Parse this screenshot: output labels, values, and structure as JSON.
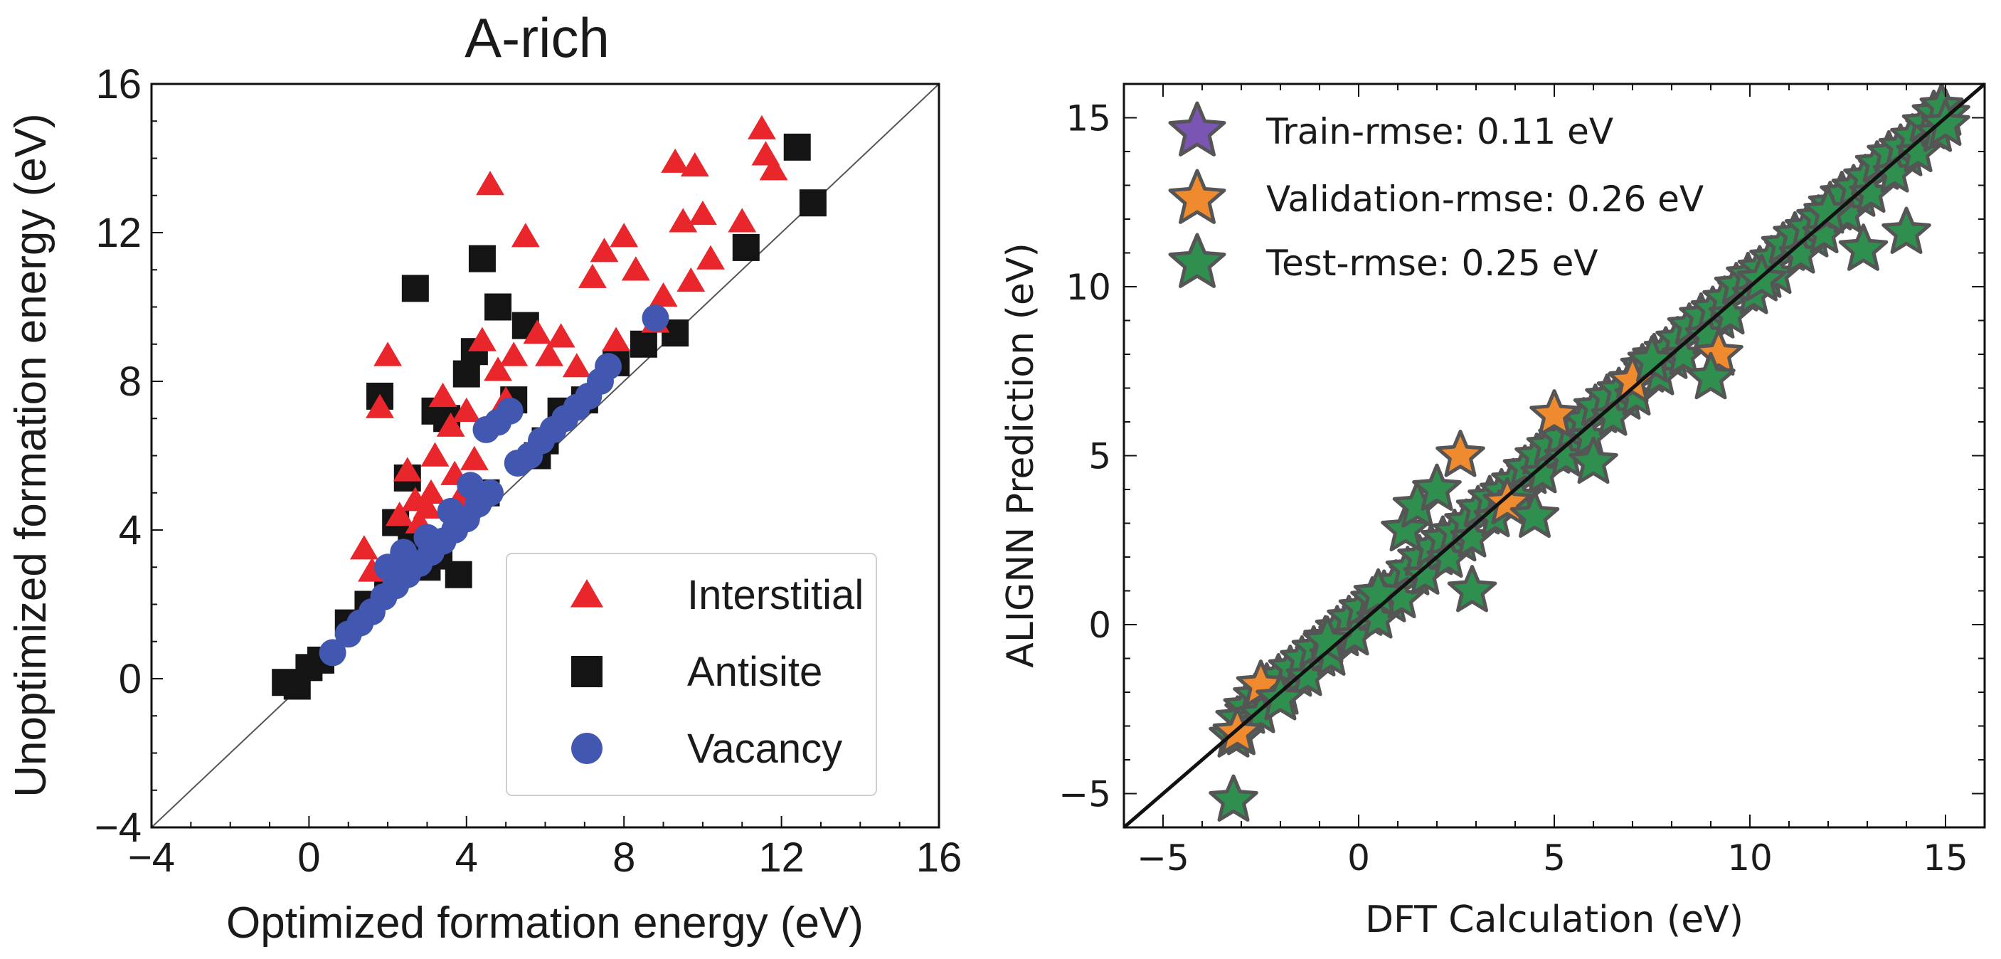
{
  "chart_data": [
    {
      "type": "scatter",
      "title": "A-rich",
      "xlabel": "Optimized formation energy (eV)",
      "ylabel": "Unoptimized formation energy (eV)",
      "xlim": [
        -4,
        16
      ],
      "ylim": [
        -4,
        16
      ],
      "xticks": [
        -4,
        0,
        4,
        8,
        12,
        16
      ],
      "yticks": [
        -4,
        0,
        4,
        8,
        12,
        16
      ],
      "xtick_labels": [
        "−4",
        "0",
        "4",
        "8",
        "12",
        "16"
      ],
      "ytick_labels": [
        "−4",
        "0",
        "4",
        "8",
        "12",
        "16"
      ],
      "diagonal": true,
      "legend_position": "bottom-right",
      "colors": {
        "Interstitial": "#e8262b",
        "Antisite": "#141414",
        "Vacancy": "#4157b0"
      },
      "series": [
        {
          "name": "Interstitial",
          "marker": "triangle",
          "points": [
            [
              1.4,
              3.5
            ],
            [
              1.6,
              2.9
            ],
            [
              1.8,
              7.3
            ],
            [
              2.0,
              8.7
            ],
            [
              2.3,
              4.4
            ],
            [
              2.5,
              5.6
            ],
            [
              2.8,
              4.2
            ],
            [
              3.0,
              4.6
            ],
            [
              3.2,
              6.0
            ],
            [
              3.4,
              7.6
            ],
            [
              3.6,
              6.8
            ],
            [
              3.8,
              4.8
            ],
            [
              4.0,
              7.2
            ],
            [
              4.2,
              5.9
            ],
            [
              4.4,
              9.1
            ],
            [
              4.6,
              13.3
            ],
            [
              4.8,
              8.3
            ],
            [
              5.0,
              7.5
            ],
            [
              5.2,
              8.7
            ],
            [
              5.5,
              11.9
            ],
            [
              5.8,
              9.3
            ],
            [
              6.1,
              8.7
            ],
            [
              6.4,
              9.2
            ],
            [
              6.8,
              8.4
            ],
            [
              7.2,
              10.8
            ],
            [
              7.5,
              11.5
            ],
            [
              7.8,
              9.1
            ],
            [
              8.0,
              11.9
            ],
            [
              8.3,
              11.0
            ],
            [
              8.8,
              9.6
            ],
            [
              9.0,
              10.3
            ],
            [
              9.3,
              13.9
            ],
            [
              9.5,
              12.3
            ],
            [
              9.7,
              10.7
            ],
            [
              9.8,
              13.8
            ],
            [
              10.0,
              12.5
            ],
            [
              10.2,
              11.3
            ],
            [
              11.0,
              12.3
            ],
            [
              11.5,
              14.8
            ],
            [
              11.6,
              14.1
            ],
            [
              11.8,
              13.7
            ],
            [
              2.7,
              4.8
            ],
            [
              3.1,
              5.0
            ],
            [
              3.7,
              5.5
            ],
            [
              4.1,
              5.0
            ]
          ]
        },
        {
          "name": "Antisite",
          "marker": "square",
          "points": [
            [
              -0.6,
              -0.1
            ],
            [
              -0.3,
              -0.2
            ],
            [
              0.0,
              0.3
            ],
            [
              0.3,
              0.5
            ],
            [
              1.0,
              1.5
            ],
            [
              1.5,
              2.0
            ],
            [
              1.8,
              7.6
            ],
            [
              2.2,
              4.2
            ],
            [
              2.5,
              5.4
            ],
            [
              2.7,
              10.5
            ],
            [
              3.0,
              3.0
            ],
            [
              3.2,
              7.2
            ],
            [
              3.5,
              7.0
            ],
            [
              3.8,
              2.8
            ],
            [
              4.0,
              8.2
            ],
            [
              4.2,
              8.8
            ],
            [
              4.4,
              11.3
            ],
            [
              4.5,
              5.0
            ],
            [
              4.8,
              10.0
            ],
            [
              5.2,
              7.5
            ],
            [
              5.5,
              9.5
            ],
            [
              5.8,
              6.0
            ],
            [
              6.4,
              7.2
            ],
            [
              7.0,
              7.5
            ],
            [
              7.8,
              8.5
            ],
            [
              8.5,
              9.0
            ],
            [
              9.3,
              9.3
            ],
            [
              11.1,
              11.6
            ],
            [
              12.4,
              14.3
            ],
            [
              12.8,
              12.8
            ],
            [
              2.0,
              2.6
            ],
            [
              2.6,
              3.6
            ],
            [
              3.3,
              3.3
            ],
            [
              6.0,
              6.4
            ]
          ]
        },
        {
          "name": "Vacancy",
          "marker": "circle",
          "points": [
            [
              0.6,
              0.7
            ],
            [
              1.0,
              1.2
            ],
            [
              1.3,
              1.5
            ],
            [
              1.6,
              1.8
            ],
            [
              1.9,
              2.2
            ],
            [
              2.2,
              2.5
            ],
            [
              2.5,
              2.8
            ],
            [
              2.8,
              3.1
            ],
            [
              3.1,
              3.4
            ],
            [
              3.4,
              3.7
            ],
            [
              3.7,
              4.0
            ],
            [
              4.0,
              4.3
            ],
            [
              4.3,
              4.7
            ],
            [
              4.6,
              5.0
            ],
            [
              4.5,
              6.7
            ],
            [
              4.8,
              6.9
            ],
            [
              5.1,
              7.2
            ],
            [
              5.3,
              5.8
            ],
            [
              5.6,
              6.0
            ],
            [
              5.9,
              6.4
            ],
            [
              6.2,
              6.7
            ],
            [
              6.5,
              7.0
            ],
            [
              6.8,
              7.3
            ],
            [
              7.1,
              7.6
            ],
            [
              7.4,
              8.0
            ],
            [
              7.6,
              8.4
            ],
            [
              8.8,
              9.7
            ],
            [
              2.0,
              3.0
            ],
            [
              2.4,
              3.4
            ],
            [
              3.0,
              3.8
            ],
            [
              3.6,
              4.5
            ],
            [
              4.1,
              5.2
            ]
          ]
        }
      ]
    },
    {
      "type": "scatter",
      "title": "",
      "xlabel": "DFT Calculation (eV)",
      "ylabel": "ALIGNN Prediction (eV)",
      "xlim": [
        -6,
        16
      ],
      "ylim": [
        -6,
        16
      ],
      "xticks": [
        -5,
        0,
        5,
        10,
        15
      ],
      "yticks": [
        -5,
        0,
        5,
        10,
        15
      ],
      "xtick_labels": [
        "−5",
        "0",
        "5",
        "10",
        "15"
      ],
      "ytick_labels": [
        "−5",
        "0",
        "5",
        "10",
        "15"
      ],
      "diagonal": true,
      "legend_position": "top-left",
      "colors": {
        "Train": "#7b55b3",
        "Validation": "#f08a2e",
        "Test": "#2e8f4f",
        "edge": "#555555"
      },
      "legend": [
        "Train-rmse: 0.11 eV",
        "Validation-rmse: 0.26 eV",
        "Test-rmse: 0.25 eV"
      ],
      "series": [
        {
          "name": "Train-rmse: 0.11 eV",
          "marker": "star",
          "points": [
            [
              -3.2,
              -3.3
            ],
            [
              -2.8,
              -2.6
            ],
            [
              -2.2,
              -2.0
            ],
            [
              -1.6,
              -1.5
            ],
            [
              -1.0,
              -0.9
            ],
            [
              -0.4,
              -0.3
            ],
            [
              0.2,
              0.3
            ],
            [
              0.8,
              0.7
            ],
            [
              1.4,
              1.5
            ],
            [
              2.0,
              2.1
            ],
            [
              2.6,
              2.5
            ],
            [
              3.2,
              3.3
            ],
            [
              3.8,
              3.7
            ],
            [
              4.4,
              4.5
            ],
            [
              5.0,
              5.1
            ],
            [
              5.6,
              5.5
            ],
            [
              6.2,
              6.3
            ],
            [
              6.8,
              6.7
            ],
            [
              7.4,
              7.5
            ],
            [
              8.0,
              7.9
            ],
            [
              8.6,
              8.7
            ],
            [
              9.2,
              9.1
            ],
            [
              9.8,
              9.9
            ],
            [
              10.4,
              10.3
            ],
            [
              11.0,
              11.1
            ],
            [
              11.6,
              11.5
            ],
            [
              12.2,
              12.3
            ],
            [
              12.8,
              12.7
            ],
            [
              13.4,
              13.5
            ],
            [
              14.0,
              13.9
            ],
            [
              14.6,
              14.7
            ],
            [
              15.0,
              15.1
            ]
          ]
        },
        {
          "name": "Validation-rmse: 0.26 eV",
          "marker": "star",
          "points": [
            [
              -3.1,
              -3.2
            ],
            [
              -2.5,
              -1.8
            ],
            [
              2.6,
              5.0
            ],
            [
              3.8,
              3.6
            ],
            [
              5.0,
              6.2
            ],
            [
              7.0,
              7.2
            ],
            [
              9.2,
              8.0
            ]
          ]
        },
        {
          "name": "Test-rmse: 0.25 eV",
          "marker": "star",
          "points": [
            [
              -3.2,
              -5.2
            ],
            [
              -2.0,
              -2.2
            ],
            [
              -0.8,
              -0.5
            ],
            [
              0.5,
              0.9
            ],
            [
              1.2,
              2.8
            ],
            [
              1.5,
              3.5
            ],
            [
              2.0,
              4.0
            ],
            [
              2.9,
              1.0
            ],
            [
              4.5,
              3.2
            ],
            [
              6.0,
              4.8
            ],
            [
              7.5,
              7.8
            ],
            [
              9.0,
              7.3
            ],
            [
              10.3,
              10.2
            ],
            [
              12.0,
              12.2
            ],
            [
              12.9,
              11.1
            ],
            [
              14.0,
              11.6
            ],
            [
              15.0,
              14.8
            ]
          ]
        }
      ]
    }
  ]
}
